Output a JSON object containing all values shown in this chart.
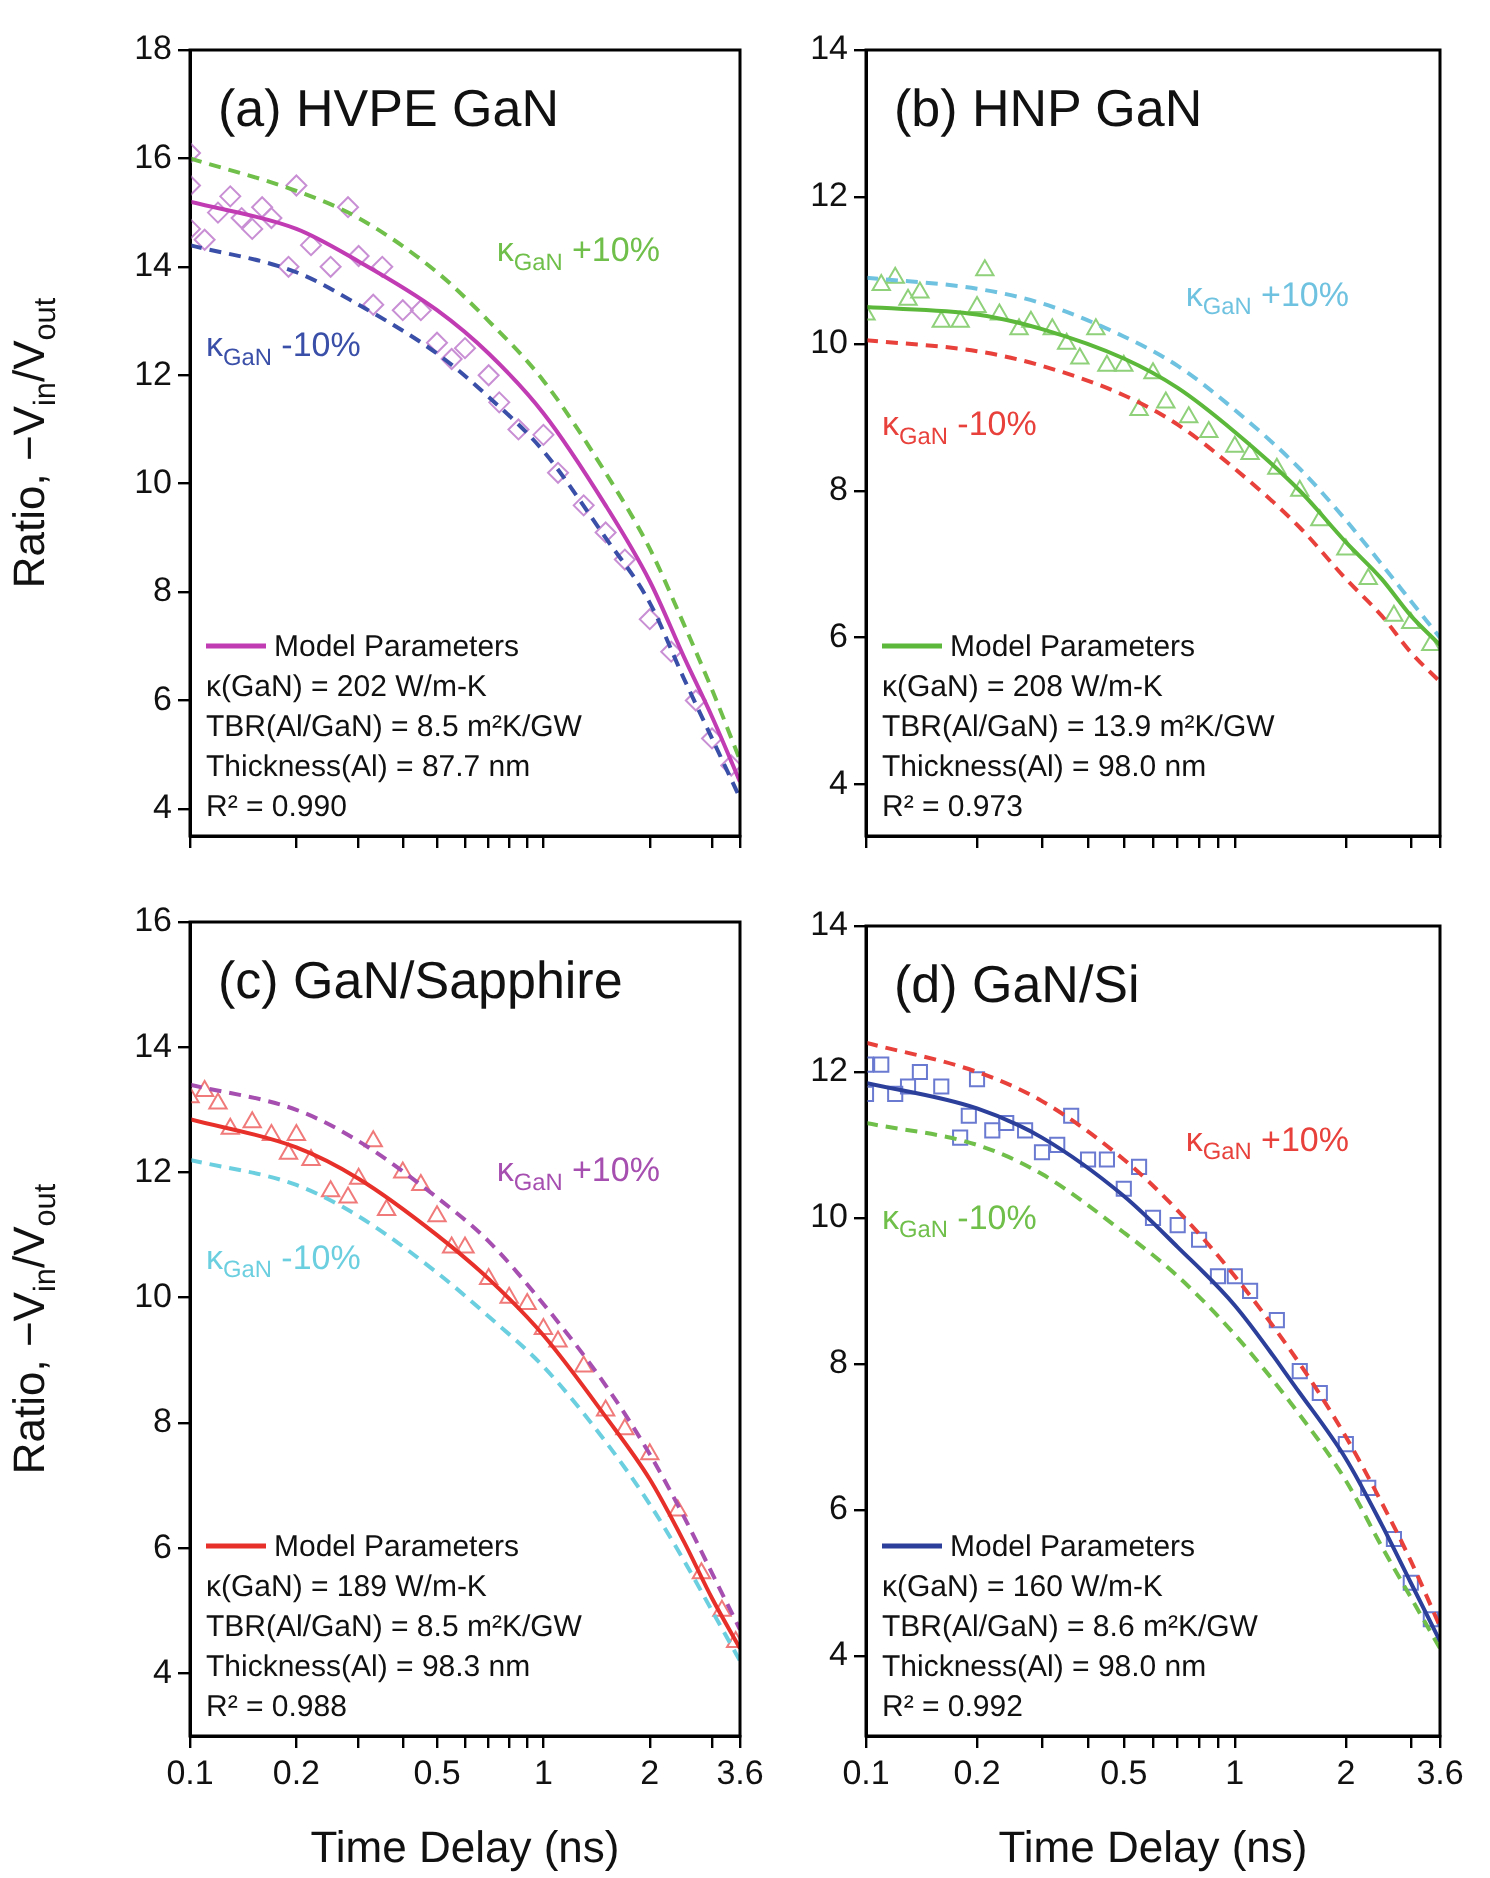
{
  "chart_data": [
    {
      "type": "line",
      "title": "(a) HVPE GaN",
      "ylabel": "Ratio, −V$_{in}$/V$_{out}$",
      "log": "x",
      "grid": false,
      "legend": "bottom left",
      "tick_labels": "y",
      "xlim": [
        0.1,
        3.6
      ],
      "xticks": [
        0.1,
        0.2,
        {
          "value": 0.3,
          "label": null
        },
        {
          "value": 0.4,
          "label": null
        },
        0.5,
        {
          "value": 0.6,
          "label": null
        },
        {
          "value": 0.7,
          "label": null
        },
        {
          "value": 0.8,
          "label": null
        },
        {
          "value": 0.9,
          "label": null
        },
        1,
        2,
        {
          "value": 3,
          "label": null
        },
        3.6
      ],
      "ylim": [
        3.5,
        18
      ],
      "yticks": [
        4,
        6,
        8,
        10,
        12,
        14,
        16,
        18
      ],
      "annotations": [
        "κ(GaN) = 202 W/m-K",
        "TBR(Al/GaN) = 8.5 m²K/GW",
        "Thickness(Al) = 87.7 nm",
        "R² = 0.990"
      ],
      "series": [
        {
          "type": "scatter",
          "color": "#c98fd4",
          "marker": "diamond",
          "x": [
            0.1,
            0.1,
            0.1,
            0.11,
            0.12,
            0.13,
            0.14,
            0.15,
            0.16,
            0.17,
            0.19,
            0.2,
            0.22,
            0.25,
            0.28,
            0.3,
            0.33,
            0.35,
            0.4,
            0.45,
            0.5,
            0.55,
            0.6,
            0.7,
            0.75,
            0.85,
            1.0,
            1.1,
            1.3,
            1.5,
            1.7,
            2.0,
            2.3,
            2.7,
            3.0,
            3.4
          ],
          "values": [
            16.1,
            15.5,
            14.7,
            14.5,
            15.0,
            15.3,
            14.9,
            14.7,
            15.1,
            14.9,
            14.0,
            15.5,
            14.4,
            14.0,
            15.1,
            14.2,
            13.3,
            14.0,
            13.2,
            13.2,
            12.6,
            12.3,
            12.5,
            12.0,
            11.5,
            11.0,
            10.9,
            10.2,
            9.6,
            9.1,
            8.6,
            7.5,
            6.9,
            6.0,
            5.3,
            4.8
          ]
        },
        {
          "type": "line",
          "name": "Model Parameters",
          "color": "#c13bb3",
          "line_style": "solid",
          "marker": "none",
          "x": [
            0.1,
            0.2,
            0.3,
            0.5,
            0.7,
            1,
            1.5,
            2,
            2.5,
            3,
            3.6
          ],
          "values": [
            15.2,
            14.7,
            14.1,
            13.2,
            12.4,
            11.3,
            9.6,
            8.2,
            6.8,
            5.7,
            4.5
          ]
        },
        {
          "type": "line",
          "name": "κ$_{GaN}$ +10%",
          "color": "#6fbf4a",
          "line_style": "dashed",
          "marker": "none",
          "x": [
            0.1,
            0.2,
            0.3,
            0.5,
            0.7,
            1,
            1.5,
            2,
            2.5,
            3,
            3.6
          ],
          "values": [
            16.0,
            15.4,
            14.9,
            13.9,
            13.0,
            11.9,
            10.2,
            8.8,
            7.4,
            6.2,
            4.9
          ]
        },
        {
          "type": "line",
          "name": "κ$_{GaN}$ -10%",
          "color": "#3a4fa8",
          "line_style": "dashed",
          "marker": "none",
          "x": [
            0.1,
            0.2,
            0.3,
            0.5,
            0.7,
            1,
            1.5,
            2,
            2.5,
            3,
            3.6
          ],
          "values": [
            14.4,
            13.9,
            13.3,
            12.4,
            11.6,
            10.6,
            9.0,
            7.8,
            6.4,
            5.3,
            4.2
          ]
        }
      ]
    },
    {
      "type": "line",
      "title": "(b) HNP GaN",
      "log": "x",
      "grid": false,
      "legend": "bottom left",
      "tick_labels": "y",
      "xlim": [
        0.1,
        3.6
      ],
      "xticks": [
        0.1,
        0.2,
        {
          "value": 0.3,
          "label": null
        },
        {
          "value": 0.4,
          "label": null
        },
        0.5,
        {
          "value": 0.6,
          "label": null
        },
        {
          "value": 0.7,
          "label": null
        },
        {
          "value": 0.8,
          "label": null
        },
        {
          "value": 0.9,
          "label": null
        },
        1,
        2,
        {
          "value": 3,
          "label": null
        },
        3.6
      ],
      "ylim": [
        3.3,
        14
      ],
      "yticks": [
        4,
        6,
        8,
        10,
        12,
        14
      ],
      "annotations": [
        "κ(GaN) = 208 W/m-K",
        "TBR(Al/GaN) = 13.9 m²K/GW",
        "Thickness(Al) = 98.0 nm",
        "R² = 0.973"
      ],
      "series": [
        {
          "type": "scatter",
          "color": "#8fd07a",
          "marker": "triangle",
          "x": [
            0.1,
            0.11,
            0.12,
            0.13,
            0.14,
            0.16,
            0.18,
            0.2,
            0.21,
            0.23,
            0.26,
            0.28,
            0.32,
            0.35,
            0.38,
            0.42,
            0.45,
            0.5,
            0.55,
            0.6,
            0.65,
            0.75,
            0.85,
            1.0,
            1.1,
            1.3,
            1.5,
            1.7,
            2.0,
            2.3,
            2.7,
            3.0,
            3.4
          ],
          "values": [
            10.4,
            10.8,
            10.9,
            10.6,
            10.7,
            10.3,
            10.3,
            10.5,
            11.0,
            10.4,
            10.2,
            10.3,
            10.2,
            10.0,
            9.8,
            10.2,
            9.7,
            9.7,
            9.1,
            9.6,
            9.2,
            9.0,
            8.8,
            8.6,
            8.5,
            8.3,
            8.0,
            7.6,
            7.2,
            6.8,
            6.3,
            6.2,
            5.9
          ]
        },
        {
          "type": "line",
          "name": "Model Parameters",
          "color": "#5cb83a",
          "line_style": "solid",
          "marker": "none",
          "x": [
            0.1,
            0.2,
            0.3,
            0.5,
            0.7,
            1,
            1.5,
            2,
            2.5,
            3,
            3.6
          ],
          "values": [
            10.5,
            10.4,
            10.2,
            9.8,
            9.4,
            8.8,
            8.0,
            7.3,
            6.8,
            6.3,
            5.9
          ]
        },
        {
          "type": "line",
          "name": "κ$_{GaN}$ +10%",
          "color": "#6fc3e0",
          "line_style": "dashed",
          "marker": "none",
          "x": [
            0.1,
            0.2,
            0.3,
            0.5,
            0.7,
            1,
            1.5,
            2,
            2.5,
            3,
            3.6
          ],
          "values": [
            10.9,
            10.75,
            10.55,
            10.1,
            9.7,
            9.1,
            8.3,
            7.6,
            7.0,
            6.5,
            6.0
          ]
        },
        {
          "type": "line",
          "name": "κ$_{GaN}$ -10%",
          "color": "#e8413c",
          "line_style": "dashed",
          "marker": "none",
          "x": [
            0.1,
            0.2,
            0.3,
            0.5,
            0.7,
            1,
            1.5,
            2,
            2.5,
            3,
            3.6
          ],
          "values": [
            10.05,
            9.9,
            9.7,
            9.3,
            8.9,
            8.3,
            7.5,
            6.8,
            6.3,
            5.8,
            5.4
          ]
        }
      ]
    },
    {
      "type": "line",
      "title": "(c) GaN/Sapphire",
      "xlabel": "Time Delay (ns)",
      "ylabel": "Ratio, −V$_{in}$/V$_{out}$",
      "log": "x",
      "grid": false,
      "legend": "bottom left",
      "xlim": [
        0.1,
        3.6
      ],
      "xticks": [
        0.1,
        0.2,
        {
          "value": 0.3,
          "label": null
        },
        {
          "value": 0.4,
          "label": null
        },
        0.5,
        {
          "value": 0.6,
          "label": null
        },
        {
          "value": 0.7,
          "label": null
        },
        {
          "value": 0.8,
          "label": null
        },
        {
          "value": 0.9,
          "label": null
        },
        1,
        2,
        {
          "value": 3,
          "label": null
        },
        3.6
      ],
      "ylim": [
        3,
        16
      ],
      "yticks": [
        4,
        6,
        8,
        10,
        12,
        14,
        16
      ],
      "annotations": [
        "κ(GaN) = 189 W/m-K",
        "TBR(Al/GaN) = 8.5 m²K/GW",
        "Thickness(Al) = 98.3 nm",
        "R² = 0.988"
      ],
      "series": [
        {
          "type": "scatter",
          "color": "#f07a7a",
          "marker": "triangle",
          "x": [
            0.1,
            0.11,
            0.12,
            0.13,
            0.15,
            0.17,
            0.19,
            0.2,
            0.22,
            0.25,
            0.28,
            0.3,
            0.33,
            0.36,
            0.4,
            0.45,
            0.5,
            0.55,
            0.6,
            0.7,
            0.8,
            0.9,
            1.0,
            1.1,
            1.3,
            1.5,
            1.7,
            2.0,
            2.4,
            2.8,
            3.2,
            3.5
          ],
          "values": [
            13.2,
            13.3,
            13.1,
            12.7,
            12.8,
            12.6,
            12.3,
            12.6,
            12.2,
            11.7,
            11.6,
            11.9,
            12.5,
            11.4,
            12.0,
            11.8,
            11.3,
            10.8,
            10.8,
            10.3,
            10.0,
            9.9,
            9.5,
            9.3,
            8.9,
            8.2,
            7.9,
            7.5,
            6.6,
            5.6,
            5.0,
            4.5
          ]
        },
        {
          "type": "line",
          "name": "Model Parameters",
          "color": "#e8302a",
          "line_style": "solid",
          "marker": "none",
          "x": [
            0.1,
            0.2,
            0.3,
            0.5,
            0.7,
            1,
            1.5,
            2,
            2.5,
            3,
            3.6
          ],
          "values": [
            12.85,
            12.4,
            11.9,
            11.0,
            10.3,
            9.4,
            8.1,
            7.1,
            6.1,
            5.2,
            4.4
          ]
        },
        {
          "type": "line",
          "name": "κ$_{GaN}$ +10%",
          "color": "#a64fb0",
          "line_style": "dashed",
          "marker": "none",
          "x": [
            0.1,
            0.2,
            0.3,
            0.5,
            0.7,
            1,
            1.5,
            2,
            2.5,
            3,
            3.6
          ],
          "values": [
            13.4,
            13.0,
            12.5,
            11.6,
            10.9,
            9.9,
            8.6,
            7.5,
            6.5,
            5.6,
            4.7
          ]
        },
        {
          "type": "line",
          "name": "κ$_{GaN}$ -10%",
          "color": "#6ccfe0",
          "line_style": "dashed",
          "marker": "none",
          "x": [
            0.1,
            0.2,
            0.3,
            0.5,
            0.7,
            1,
            1.5,
            2,
            2.5,
            3,
            3.6
          ],
          "values": [
            12.2,
            11.8,
            11.3,
            10.4,
            9.7,
            8.9,
            7.7,
            6.7,
            5.8,
            5.0,
            4.2
          ]
        }
      ]
    },
    {
      "type": "line",
      "title": "(d) GaN/Si",
      "xlabel": "Time Delay (ns)",
      "log": "x",
      "grid": false,
      "legend": "bottom left",
      "xlim": [
        0.1,
        3.6
      ],
      "xticks": [
        0.1,
        0.2,
        {
          "value": 0.3,
          "label": null
        },
        {
          "value": 0.4,
          "label": null
        },
        0.5,
        {
          "value": 0.6,
          "label": null
        },
        {
          "value": 0.7,
          "label": null
        },
        {
          "value": 0.8,
          "label": null
        },
        {
          "value": 0.9,
          "label": null
        },
        1,
        2,
        {
          "value": 3,
          "label": null
        },
        3.6
      ],
      "ylim": [
        2.9,
        14
      ],
      "yticks": [
        4,
        6,
        8,
        10,
        12,
        14
      ],
      "annotations": [
        "κ(GaN) = 160 W/m-K",
        "TBR(Al/GaN) = 8.6 m²K/GW",
        "Thickness(Al) = 98.0 nm",
        "R² = 0.992"
      ],
      "series": [
        {
          "type": "scatter",
          "color": "#6a7ad0",
          "marker": "square",
          "x": [
            0.1,
            0.1,
            0.11,
            0.12,
            0.13,
            0.14,
            0.16,
            0.18,
            0.19,
            0.2,
            0.22,
            0.24,
            0.27,
            0.3,
            0.33,
            0.36,
            0.4,
            0.45,
            0.5,
            0.55,
            0.6,
            0.7,
            0.8,
            0.9,
            1.0,
            1.1,
            1.3,
            1.5,
            1.7,
            2.0,
            2.3,
            2.7,
            3.0,
            3.4
          ],
          "values": [
            11.7,
            12.1,
            12.1,
            11.7,
            11.8,
            12.0,
            11.8,
            11.1,
            11.4,
            11.9,
            11.2,
            11.3,
            11.2,
            10.9,
            11.0,
            11.4,
            10.8,
            10.8,
            10.4,
            10.7,
            10.0,
            9.9,
            9.7,
            9.2,
            9.2,
            9.0,
            8.6,
            7.9,
            7.6,
            6.9,
            6.3,
            5.6,
            5.0,
            4.5
          ]
        },
        {
          "type": "line",
          "name": "Model Parameters",
          "color": "#2c3f9a",
          "line_style": "solid",
          "marker": "none",
          "x": [
            0.1,
            0.2,
            0.3,
            0.5,
            0.7,
            1,
            1.5,
            2,
            2.5,
            3,
            3.6
          ],
          "values": [
            11.85,
            11.5,
            11.1,
            10.3,
            9.6,
            8.8,
            7.6,
            6.7,
            5.8,
            5.0,
            4.2
          ]
        },
        {
          "type": "line",
          "name": "κ$_{GaN}$ +10%",
          "color": "#e8413c",
          "line_style": "dashed",
          "marker": "none",
          "x": [
            0.1,
            0.2,
            0.3,
            0.5,
            0.7,
            1,
            1.5,
            2,
            2.5,
            3,
            3.6
          ],
          "values": [
            12.4,
            12.0,
            11.6,
            10.8,
            10.1,
            9.2,
            8.0,
            7.0,
            6.1,
            5.3,
            4.4
          ]
        },
        {
          "type": "line",
          "name": "κ$_{GaN}$ -10%",
          "color": "#6fbf4a",
          "line_style": "dashed",
          "marker": "none",
          "x": [
            0.1,
            0.2,
            0.3,
            0.5,
            0.7,
            1,
            1.5,
            2,
            2.5,
            3,
            3.6
          ],
          "values": [
            11.3,
            11.0,
            10.6,
            9.8,
            9.2,
            8.4,
            7.3,
            6.4,
            5.5,
            4.8,
            4.1
          ]
        }
      ]
    }
  ]
}
